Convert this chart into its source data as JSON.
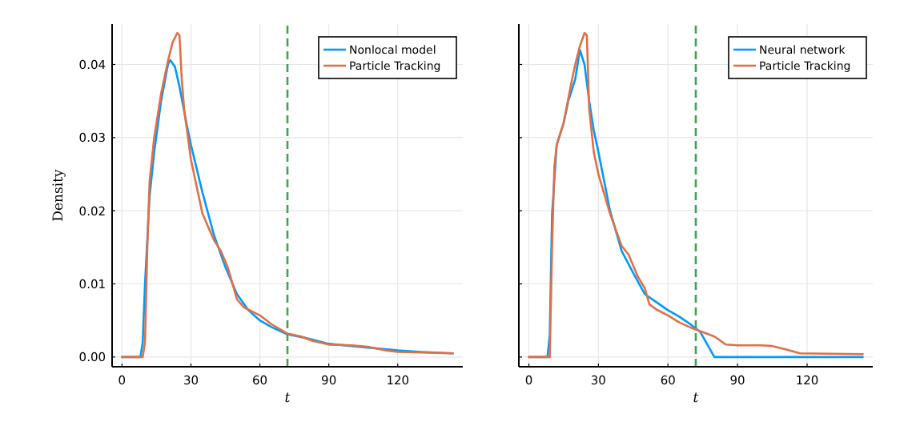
{
  "chart_data": [
    {
      "type": "line",
      "xlabel": "t",
      "ylabel": "Density",
      "xlim": [
        -4.32,
        148.32
      ],
      "ylim": [
        -0.00133,
        0.04553
      ],
      "xticks": [
        0,
        30,
        60,
        90,
        120
      ],
      "yticks": [
        {
          "value": 0,
          "label": "0.00"
        },
        {
          "value": 0.01,
          "label": "0.01"
        },
        {
          "value": 0.02,
          "label": "0.02"
        },
        {
          "value": 0.03,
          "label": "0.03"
        },
        {
          "value": 0.04,
          "label": "0.04"
        }
      ],
      "grid": true,
      "legend": "top right",
      "line_style": "solid",
      "ref_lines": [
        {
          "axis": "x",
          "value": 72,
          "color": "#3da44d",
          "line_style": "dashed"
        }
      ],
      "series": [
        {
          "name": "Nonlocal model",
          "color": "#009af9",
          "x": [
            0,
            8,
            9,
            10,
            12,
            14,
            17,
            20,
            21,
            23,
            25,
            28,
            30,
            35,
            40,
            45,
            50,
            55,
            60,
            65,
            72,
            80,
            90,
            100,
            110,
            120,
            130,
            144
          ],
          "values": [
            0,
            0,
            0.002,
            0.01,
            0.022,
            0.028,
            0.035,
            0.04,
            0.0406,
            0.0397,
            0.037,
            0.032,
            0.029,
            0.0225,
            0.0167,
            0.0123,
            0.0086,
            0.0064,
            0.005,
            0.0041,
            0.0031,
            0.0026,
            0.0018,
            0.0015,
            0.0012,
            0.0009,
            0.0007,
            0.0005
          ]
        },
        {
          "name": "Particle Tracking",
          "color": "#e26f46",
          "x": [
            0,
            9,
            10,
            11,
            12,
            14,
            17,
            20,
            22,
            24,
            25,
            26,
            27,
            30,
            35,
            40,
            43,
            46,
            50,
            53,
            60,
            65,
            72,
            78,
            83,
            90,
            100,
            107,
            115,
            120,
            144
          ],
          "values": [
            0,
            0,
            0.002,
            0.015,
            0.024,
            0.03,
            0.036,
            0.0405,
            0.043,
            0.0443,
            0.044,
            0.038,
            0.034,
            0.027,
            0.0196,
            0.016,
            0.0145,
            0.0123,
            0.0079,
            0.0068,
            0.0057,
            0.0045,
            0.0032,
            0.0028,
            0.0022,
            0.0017,
            0.0016,
            0.0014,
            0.0009,
            0.0007,
            0.0005
          ]
        }
      ]
    },
    {
      "type": "line",
      "xlabel": "t",
      "xlim": [
        -4.32,
        148.32
      ],
      "ylim": [
        -0.00133,
        0.04553
      ],
      "xticks": [
        0,
        30,
        60,
        90,
        120
      ],
      "yticks": [
        0,
        0.01,
        0.02,
        0.03,
        0.04
      ],
      "tick_labels": "x",
      "grid": true,
      "legend": "top right",
      "line_style": "solid",
      "ref_lines": [
        {
          "axis": "x",
          "value": 72,
          "color": "#3da44d",
          "line_style": "dashed"
        }
      ],
      "series": [
        {
          "name": "Neural network",
          "color": "#009af9",
          "x": [
            0,
            8,
            9,
            10,
            12,
            15,
            17,
            20,
            22,
            24,
            26,
            28,
            30,
            35,
            40,
            45,
            50,
            55,
            60,
            65,
            70,
            74,
            77,
            80,
            144
          ],
          "values": [
            0,
            0,
            0.003,
            0.0195,
            0.029,
            0.032,
            0.035,
            0.038,
            0.042,
            0.04,
            0.035,
            0.031,
            0.028,
            0.02,
            0.0145,
            0.0115,
            0.0086,
            0.0075,
            0.0064,
            0.0055,
            0.0044,
            0.0034,
            0.0017,
            0,
            0
          ]
        },
        {
          "name": "Particle Tracking",
          "color": "#e26f46",
          "x": [
            0,
            9,
            10,
            11,
            12,
            15,
            18,
            20,
            22,
            24,
            25,
            26,
            28,
            30,
            35,
            40,
            43,
            47,
            50,
            52,
            55,
            60,
            65,
            70,
            75,
            80,
            85,
            90,
            100,
            105,
            110,
            117,
            144
          ],
          "values": [
            0,
            0,
            0.015,
            0.026,
            0.029,
            0.032,
            0.037,
            0.04,
            0.0425,
            0.0443,
            0.044,
            0.034,
            0.028,
            0.025,
            0.0196,
            0.0152,
            0.014,
            0.011,
            0.0094,
            0.0072,
            0.0065,
            0.0057,
            0.0047,
            0.004,
            0.0034,
            0.0028,
            0.0017,
            0.0016,
            0.0016,
            0.0015,
            0.0011,
            0.0005,
            0.0004
          ]
        }
      ]
    }
  ]
}
